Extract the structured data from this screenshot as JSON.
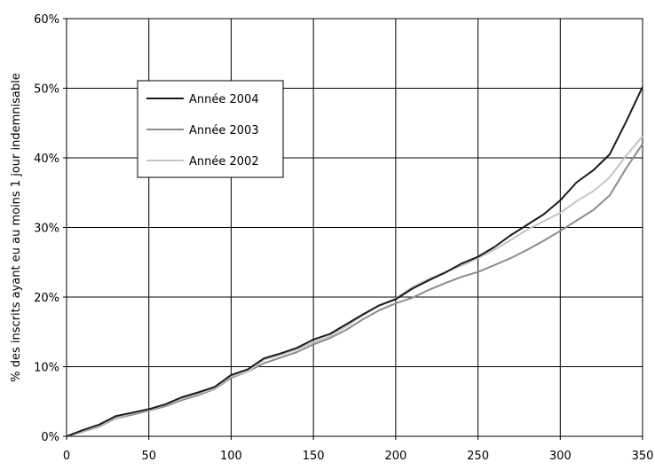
{
  "chart_data": {
    "type": "line",
    "title": "",
    "xlabel": "",
    "ylabel": "% des inscrits ayant eu au moins 1 jour indemnisable",
    "xlim": [
      0,
      350
    ],
    "ylim": [
      0,
      60
    ],
    "x_ticks": [
      0,
      50,
      100,
      150,
      200,
      250,
      300,
      350
    ],
    "x_tick_labels": [
      "0",
      "50",
      "100",
      "150",
      "200",
      "250",
      "300",
      "350"
    ],
    "y_ticks": [
      0,
      10,
      20,
      30,
      40,
      50,
      60
    ],
    "y_tick_labels": [
      "0%",
      "10%",
      "20%",
      "30%",
      "40%",
      "50%",
      "60%"
    ],
    "grid": true,
    "legend_position": "top-left",
    "x": [
      0,
      10,
      20,
      30,
      40,
      50,
      60,
      70,
      80,
      90,
      100,
      110,
      120,
      130,
      140,
      150,
      160,
      170,
      180,
      190,
      200,
      210,
      220,
      230,
      240,
      250,
      260,
      270,
      280,
      290,
      300,
      310,
      320,
      330,
      340,
      350
    ],
    "series": [
      {
        "name": "Année 2004",
        "color": "#1a1a1a",
        "values": [
          0,
          0.9,
          1.7,
          2.9,
          3.4,
          3.9,
          4.6,
          5.6,
          6.3,
          7.1,
          8.8,
          9.6,
          11.2,
          11.9,
          12.7,
          13.9,
          14.7,
          16.1,
          17.5,
          18.8,
          19.7,
          21.2,
          22.4,
          23.5,
          24.8,
          25.8,
          27.2,
          28.9,
          30.4,
          31.9,
          33.9,
          36.5,
          38.2,
          40.5,
          45.2,
          50.2
        ]
      },
      {
        "name": "Année 2003",
        "color": "#8c8c8c",
        "values": [
          0,
          0.7,
          1.4,
          2.6,
          3.1,
          3.7,
          4.3,
          5.2,
          5.9,
          6.8,
          8.4,
          9.3,
          10.5,
          11.3,
          12.1,
          13.2,
          14.1,
          15.3,
          16.8,
          18.1,
          19.1,
          19.9,
          21.0,
          22.0,
          22.9,
          23.6,
          24.6,
          25.6,
          26.8,
          28.1,
          29.5,
          31.0,
          32.5,
          34.6,
          38.5,
          42.0
        ]
      },
      {
        "name": "Année 2002",
        "color": "#c4c4c4",
        "values": [
          0,
          0.8,
          1.5,
          2.7,
          3.3,
          3.8,
          4.5,
          5.4,
          6.1,
          6.9,
          8.6,
          9.3,
          11.0,
          11.7,
          12.5,
          13.5,
          14.4,
          15.8,
          17.4,
          18.8,
          19.8,
          21.4,
          22.6,
          23.6,
          24.5,
          25.6,
          26.8,
          28.2,
          29.7,
          30.9,
          32.1,
          33.8,
          35.2,
          37.2,
          40.3,
          43.1
        ]
      }
    ]
  }
}
